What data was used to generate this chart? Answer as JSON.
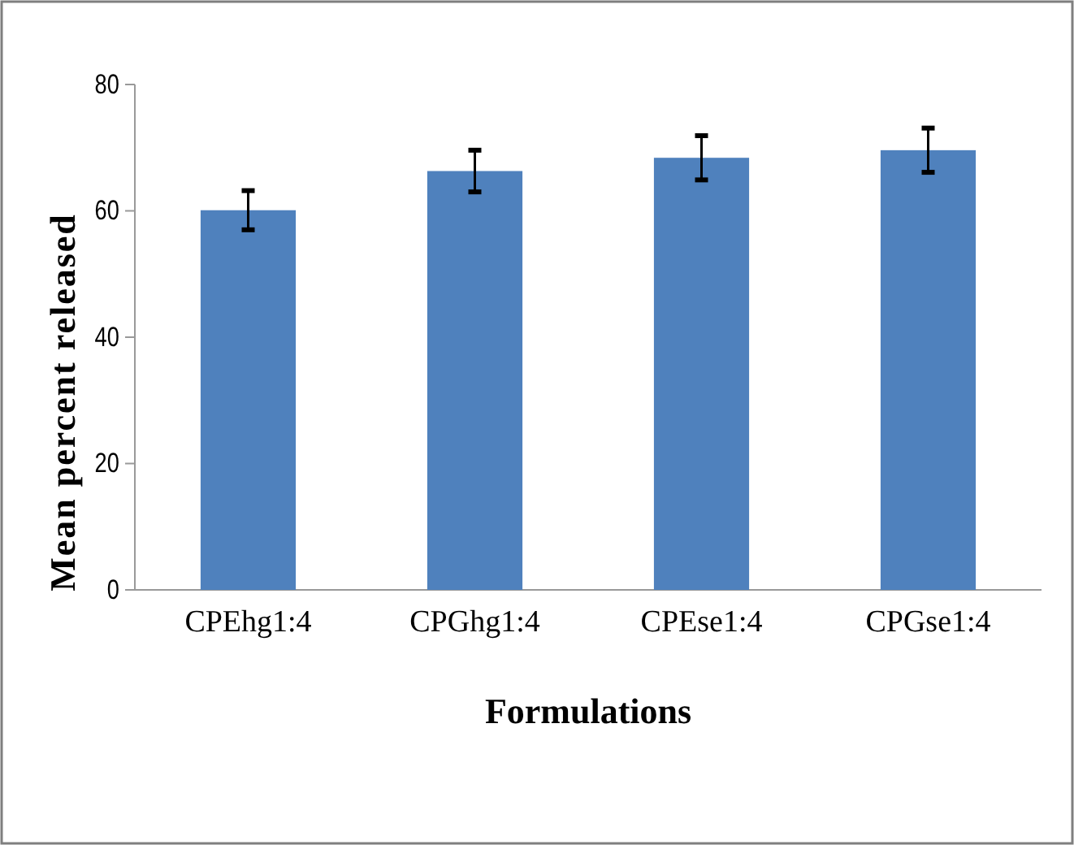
{
  "chart_data": {
    "type": "bar",
    "xlabel": "Formulations",
    "ylabel": "Mean percent released",
    "categories": [
      "CPEhg1:4",
      "CPGhg1:4",
      "CPEse1:4",
      "CPGse1:4"
    ],
    "values": [
      60.1,
      66.3,
      68.4,
      69.6
    ],
    "errors": [
      3.1,
      3.3,
      3.5,
      3.5
    ],
    "color": "#4f81bd",
    "ylim": [
      0,
      80
    ],
    "yticks": [
      0,
      20,
      40,
      60,
      80
    ]
  }
}
